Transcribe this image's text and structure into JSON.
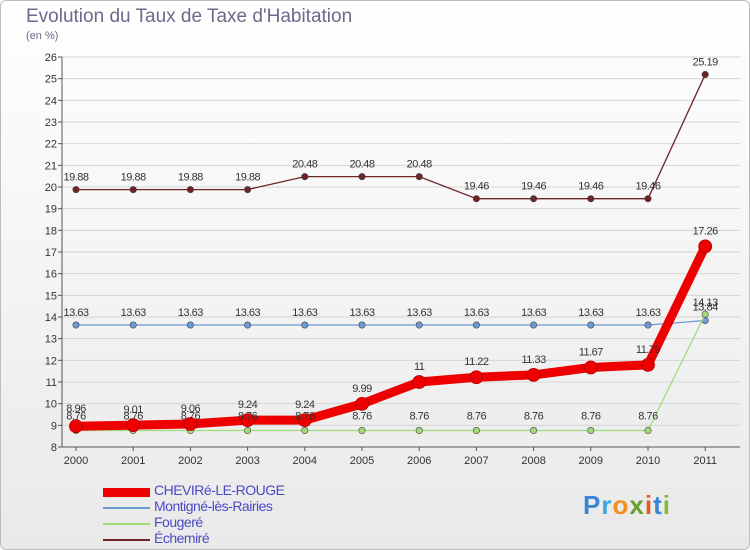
{
  "chart_data": {
    "type": "line",
    "title": "Evolution du Taux de Taxe d'Habitation",
    "subtitle": "(en %)",
    "categories": [
      "2000",
      "2001",
      "2002",
      "2003",
      "2004",
      "2005",
      "2006",
      "2007",
      "2008",
      "2009",
      "2010",
      "2011"
    ],
    "ylim": [
      8,
      26
    ],
    "yticks": [
      8,
      9,
      10,
      11,
      12,
      13,
      14,
      15,
      16,
      17,
      18,
      19,
      20,
      21,
      22,
      23,
      24,
      25,
      26
    ],
    "series": [
      {
        "name": "Échemiré",
        "color": "#6e2424",
        "values": [
          19.88,
          19.88,
          19.88,
          19.88,
          20.48,
          20.48,
          20.48,
          19.46,
          19.46,
          19.46,
          19.46,
          25.19
        ],
        "labels": [
          "19.88",
          "19.88",
          "19.88",
          "19.88",
          "20.48",
          "20.48",
          "20.48",
          "19.46",
          "19.46",
          "19.46",
          "19.46",
          "25.19"
        ]
      },
      {
        "name": "Montigné-lès-Rairies",
        "color": "#6b9ad0",
        "values": [
          13.63,
          13.63,
          13.63,
          13.63,
          13.63,
          13.63,
          13.63,
          13.63,
          13.63,
          13.63,
          13.63,
          13.84
        ],
        "labels": [
          "13.63",
          "13.63",
          "13.63",
          "13.63",
          "13.63",
          "13.63",
          "13.63",
          "13.63",
          "13.63",
          "13.63",
          "13.63",
          "13.84"
        ]
      },
      {
        "name": "Fougeré",
        "color": "#a2dc7a",
        "values": [
          8.76,
          8.76,
          8.76,
          8.76,
          8.76,
          8.76,
          8.76,
          8.76,
          8.76,
          8.76,
          8.76,
          14.13
        ],
        "labels": [
          "8.76",
          "8.76",
          "8.76",
          "8.76",
          "8.76",
          "8.76",
          "8.76",
          "8.76",
          "8.76",
          "8.76",
          "8.76",
          "14.13"
        ]
      },
      {
        "name": "CHEVIRé-LE-ROUGE",
        "color": "#ee0000",
        "values": [
          8.96,
          9.01,
          9.06,
          9.24,
          9.24,
          9.99,
          11,
          11.22,
          11.33,
          11.67,
          11.79,
          17.26
        ],
        "labels": [
          "8.96",
          "9.01",
          "9.06",
          "9.24",
          "9.24",
          "9.99",
          "11",
          "11.22",
          "11.33",
          "11.67",
          "11.79",
          "17.26"
        ]
      }
    ],
    "legend": [
      "CHEVIRé-LE-ROUGE",
      "Montigné-lès-Rairies",
      "Fougeré",
      "Échemiré"
    ]
  },
  "branding": {
    "logo_text": "Proxiti"
  }
}
